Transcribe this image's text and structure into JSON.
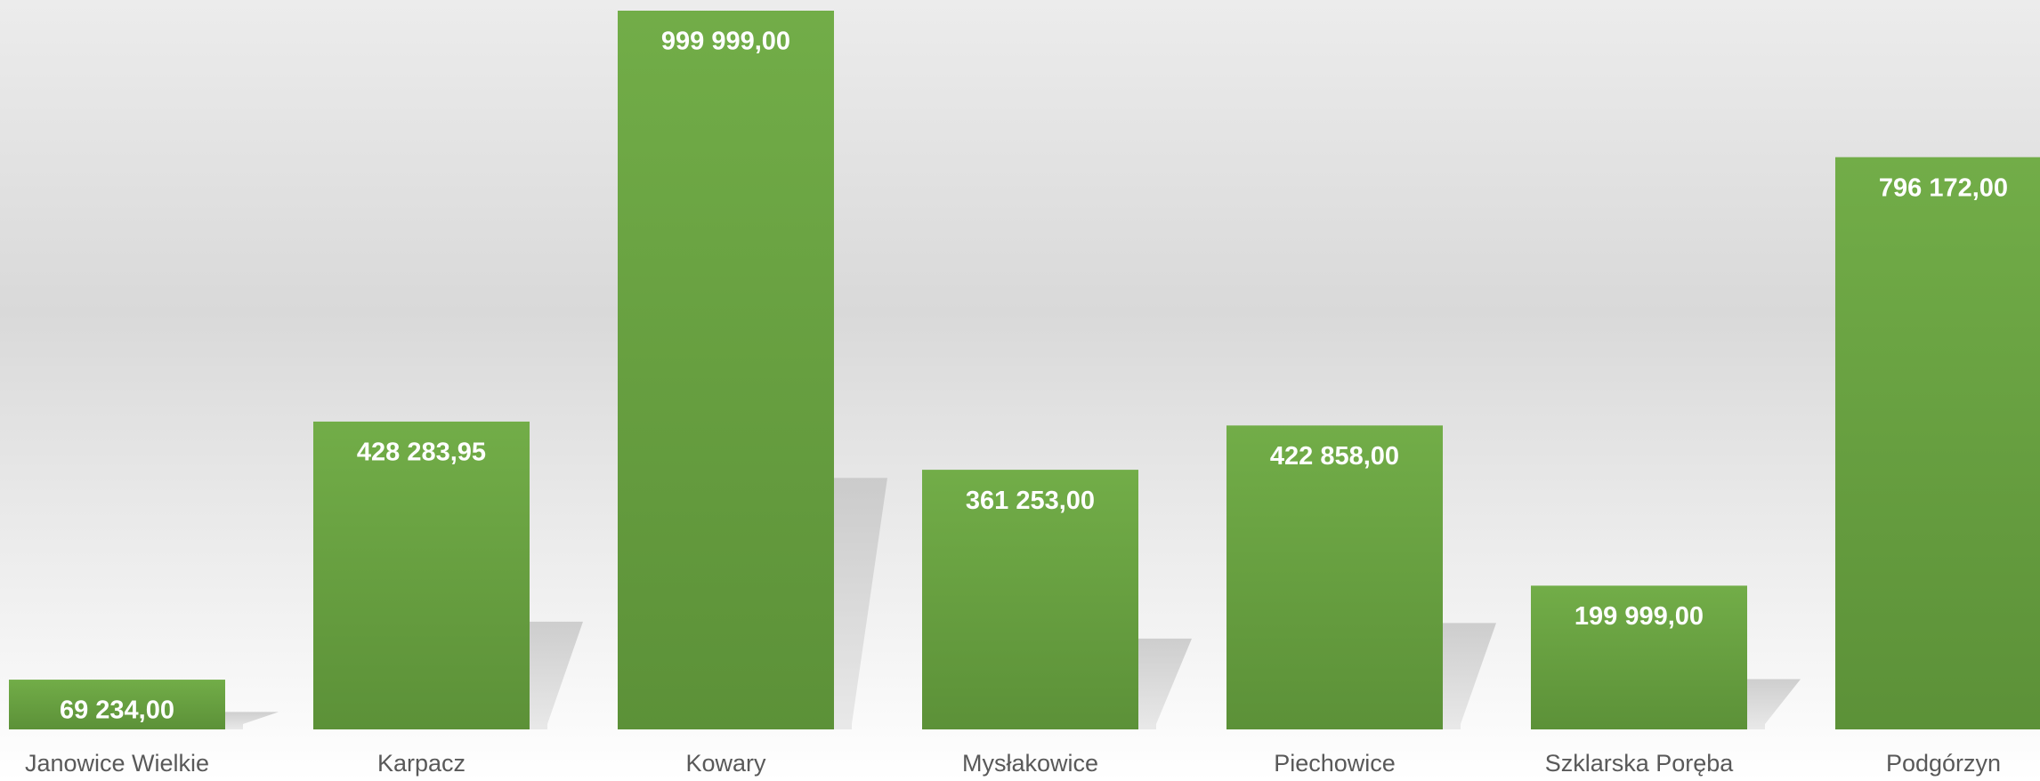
{
  "chart_data": {
    "type": "bar",
    "categories": [
      "Janowice Wielkie",
      "Karpacz",
      "Kowary",
      "Mysłakowice",
      "Piechowice",
      "Szklarska Poręba",
      "Podgórzyn"
    ],
    "values": [
      69234,
      428283.95,
      999999,
      361253,
      422858,
      199999,
      796172
    ],
    "value_labels": [
      "69 234,00",
      "428 283,95",
      "999 999,00",
      "361 253,00",
      "422 858,00",
      "199 999,00",
      "796 172,00"
    ],
    "color": "#6aa443",
    "ylim": [
      0,
      1000000
    ]
  }
}
